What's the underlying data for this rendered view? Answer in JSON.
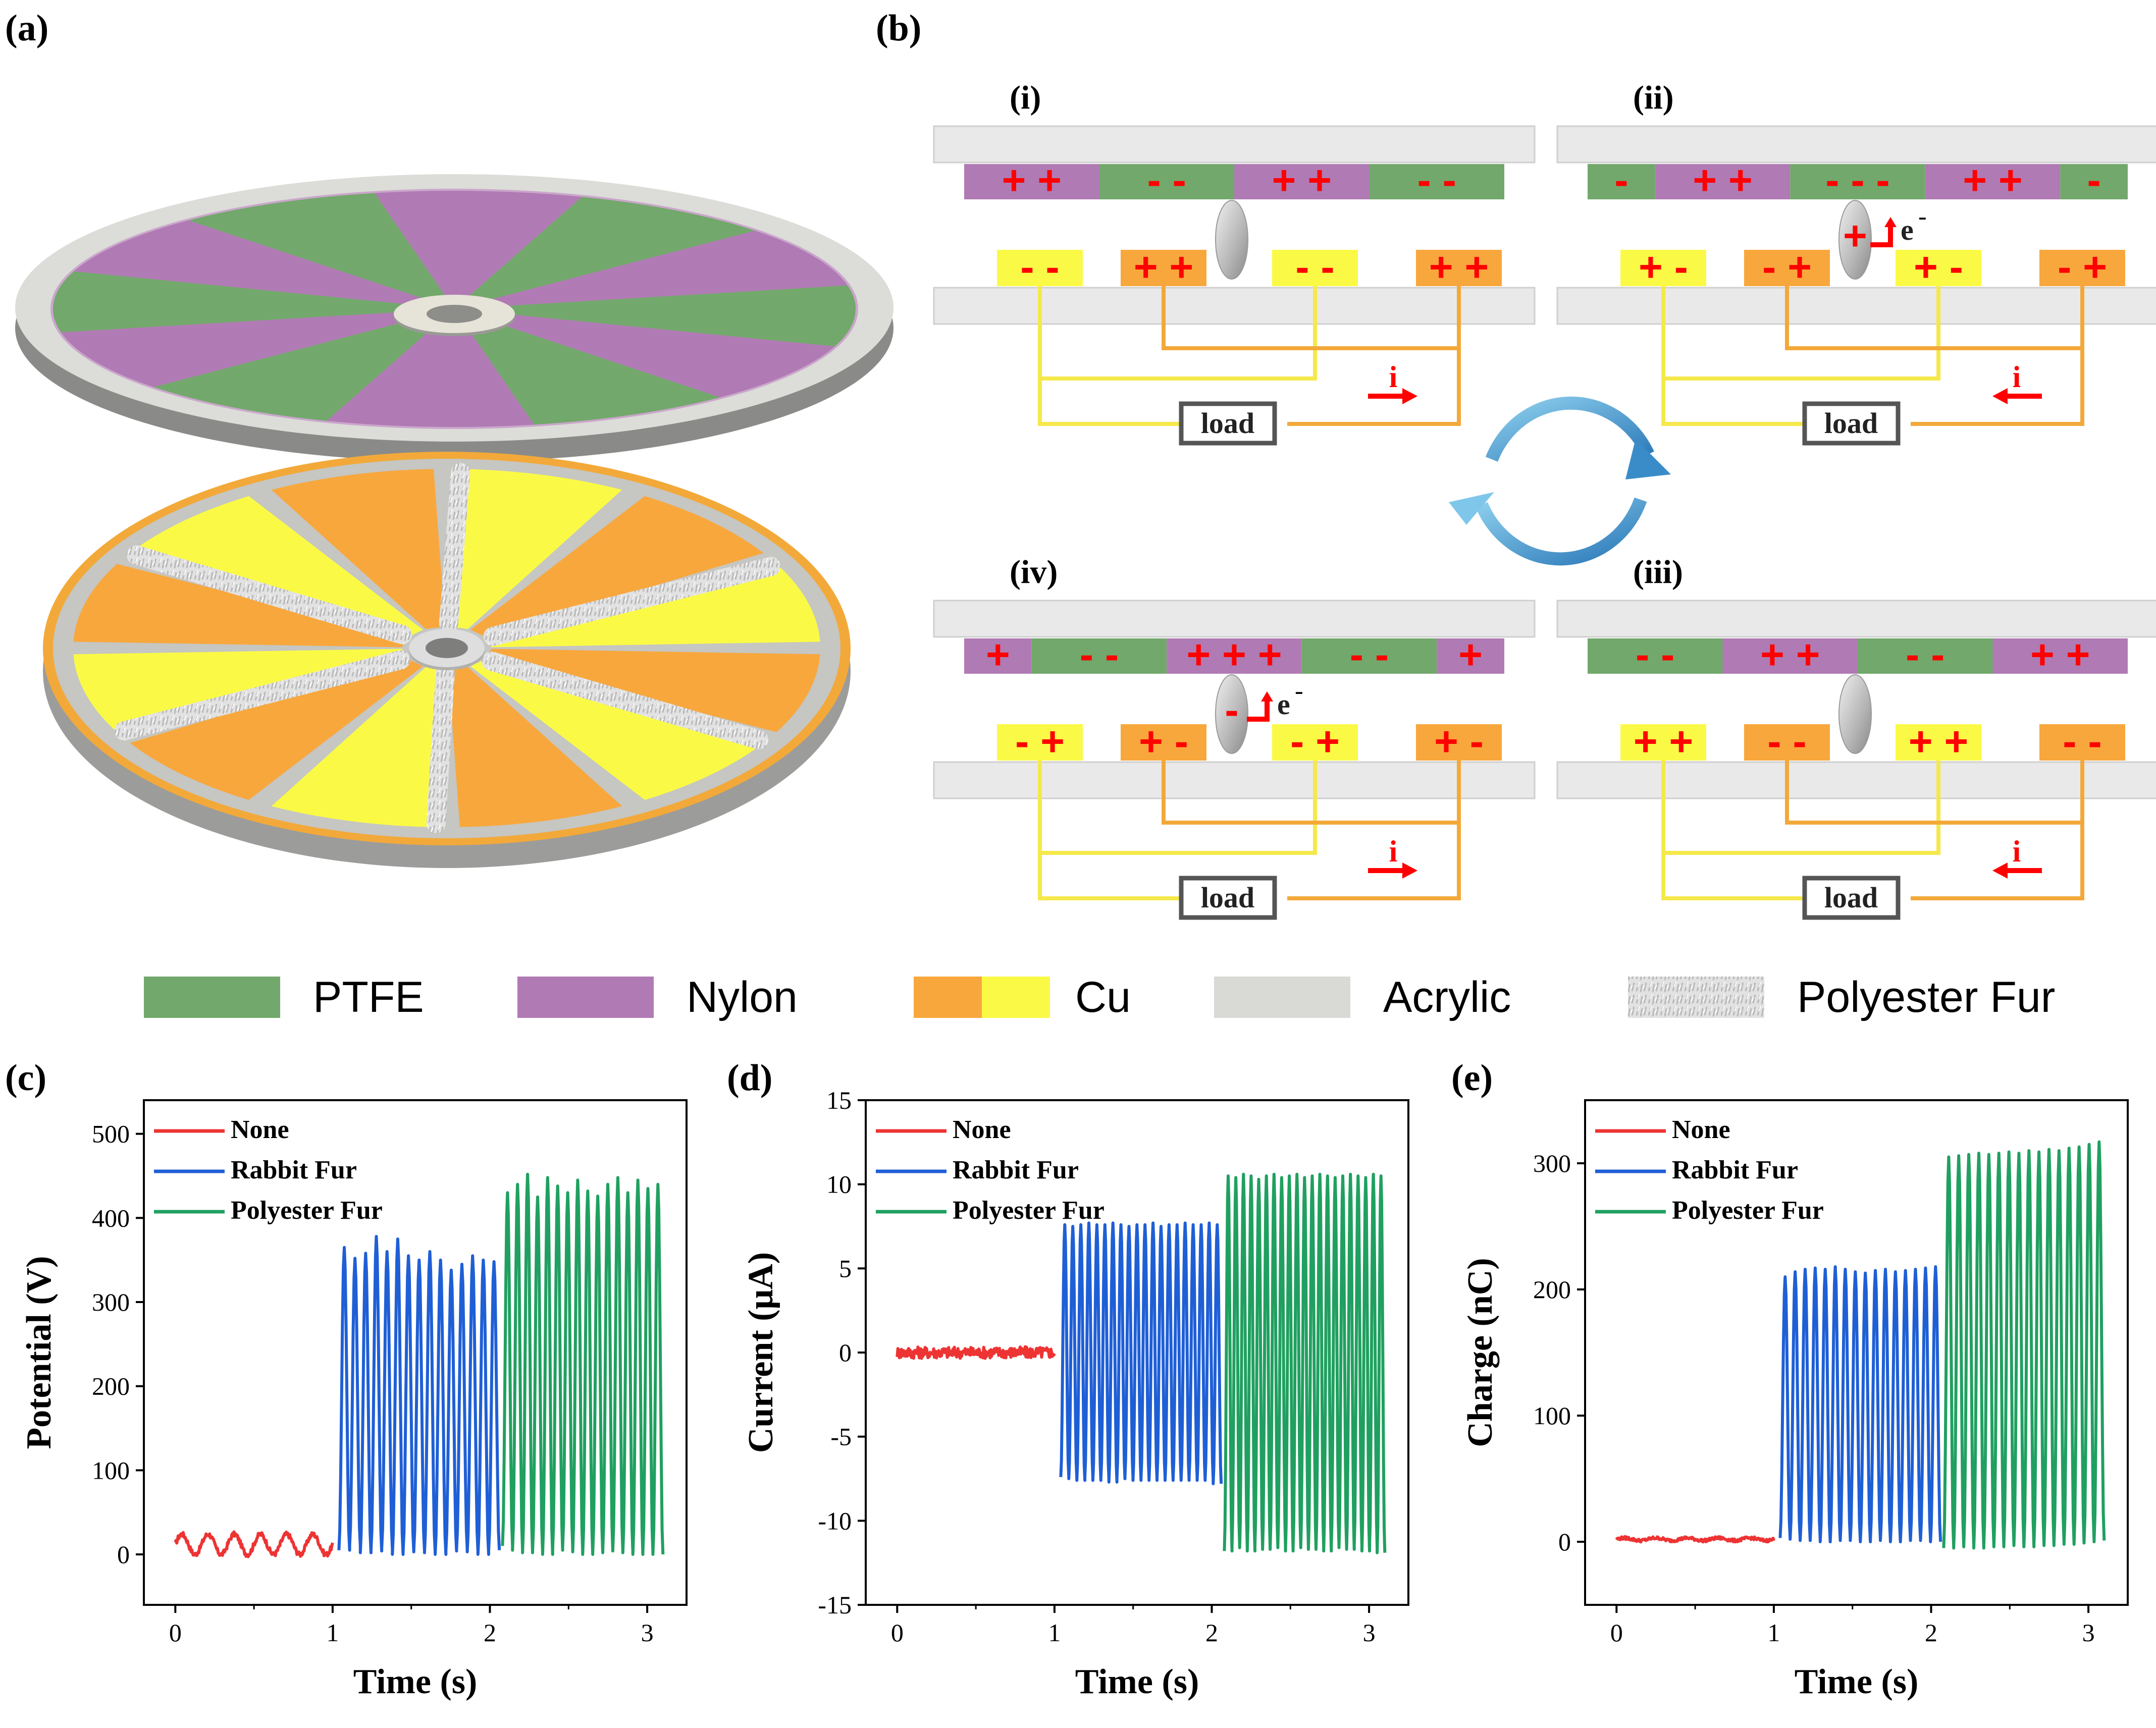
{
  "panels": {
    "a": "(a)",
    "b": "(b)",
    "c": "(c)",
    "d": "(d)",
    "e": "(e)"
  },
  "diagram": {
    "stages": [
      {
        "id": "i",
        "label": "(i)",
        "top": [
          "+ +",
          "- -",
          "+ +",
          "- -"
        ],
        "bottom": [
          "- -",
          "+ +",
          "- -",
          "+ +"
        ],
        "current": "i",
        "direction": "right",
        "particle_charge": "",
        "electron": ""
      },
      {
        "id": "ii",
        "label": "(ii)",
        "top": [
          "-",
          "+ +",
          "- - -",
          "+ +",
          "-"
        ],
        "bottom": [
          "+ -",
          "- +",
          "+ -",
          "- +"
        ],
        "current": "i",
        "direction": "left",
        "particle_charge": "+",
        "electron": "e"
      },
      {
        "id": "iii",
        "label": "(iii)",
        "top": [
          "- -",
          "+ +",
          "- -",
          "+ +"
        ],
        "bottom": [
          "+ +",
          "- -",
          "+ +",
          "- -"
        ],
        "current": "i",
        "direction": "left",
        "particle_charge": "",
        "electron": ""
      },
      {
        "id": "iv",
        "label": "(iv)",
        "top": [
          "+",
          "- -",
          "+ + +",
          "- -",
          "+"
        ],
        "bottom": [
          "- +",
          "+ -",
          "- +",
          "+ -"
        ],
        "current": "i",
        "direction": "right",
        "particle_charge": "-",
        "electron": "e"
      }
    ],
    "load_label": "load",
    "electron_superscript": "-"
  },
  "legend": [
    {
      "label": "PTFE",
      "color": "#72a86b"
    },
    {
      "label": "Nylon",
      "color": "#b07ab4"
    },
    {
      "label": "Cu",
      "color": "#f8a73d",
      "color2": "#fafa46"
    },
    {
      "label": "Acrylic",
      "color": "#d9d9d6"
    },
    {
      "label": "Polyester Fur",
      "color": "#e4e4e4"
    }
  ],
  "colors": {
    "ptfe": "#72a86b",
    "nylon": "#b07ab4",
    "cu_orange": "#f8a73d",
    "cu_yellow": "#fafa46",
    "acrylic": "#e9e9e9",
    "wire_yellow": "#f5e84a",
    "wire_orange": "#f2a93a",
    "none": "#ee3333",
    "rabbit": "#1f5fd6",
    "polyester": "#20a060",
    "sign": "#ff0000"
  },
  "chart_data": [
    {
      "type": "line",
      "title": "",
      "xlabel": "Time (s)",
      "ylabel": "Potential (V)",
      "xlim": [
        -0.2,
        3.25
      ],
      "ylim": [
        -60,
        540
      ],
      "xticks": [
        0,
        1,
        2,
        3
      ],
      "yticks": [
        0,
        100,
        200,
        300,
        400,
        500
      ],
      "legend": [
        "None",
        "Rabbit Fur",
        "Polyester Fur"
      ],
      "series": [
        {
          "name": "None",
          "x_range": [
            0.0,
            1.0
          ],
          "baseline": 12,
          "amplitude": 12,
          "cycles": 6,
          "noise": 3
        },
        {
          "name": "Rabbit Fur",
          "x_range": [
            1.04,
            2.06
          ],
          "peaks": [
            365,
            352,
            358,
            378,
            360,
            375,
            355,
            350,
            360,
            350,
            338,
            345,
            355,
            350,
            348
          ],
          "troughs": [
            5,
            10,
            2,
            4,
            6,
            0,
            3,
            5,
            2,
            0,
            4,
            6,
            3,
            0,
            5
          ]
        },
        {
          "name": "Polyester Fur",
          "x_range": [
            2.08,
            3.1
          ],
          "peaks": [
            430,
            440,
            452,
            425,
            448,
            438,
            430,
            445,
            432,
            426,
            440,
            448,
            430,
            445,
            435,
            440
          ],
          "troughs": [
            10,
            5,
            2,
            3,
            0,
            5,
            8,
            3,
            0,
            2,
            5,
            4,
            2,
            0,
            3,
            0
          ]
        }
      ]
    },
    {
      "type": "line",
      "title": "",
      "xlabel": "Time (s)",
      "ylabel": "Current (μA)",
      "xlim": [
        -0.2,
        3.25
      ],
      "ylim": [
        -15,
        15
      ],
      "xticks": [
        0,
        1,
        2,
        3
      ],
      "yticks": [
        -15,
        -10,
        -5,
        0,
        5,
        10,
        15
      ],
      "legend": [
        "None",
        "Rabbit Fur",
        "Polyester Fur"
      ],
      "series": [
        {
          "name": "None",
          "x_range": [
            0.0,
            1.0
          ],
          "baseline": 0,
          "amplitude": 0,
          "cycles": 0,
          "noise": 0.35
        },
        {
          "name": "Rabbit Fur",
          "x_range": [
            1.04,
            2.06
          ],
          "peaks": [
            7.6,
            7.5,
            7.6,
            7.7,
            7.6,
            7.6,
            7.7,
            7.6,
            7.5,
            7.6,
            7.6,
            7.7,
            7.5,
            7.6,
            7.6,
            7.7,
            7.6,
            7.6,
            7.7,
            7.6
          ],
          "troughs": [
            -7.4,
            -7.5,
            -7.6,
            -7.4,
            -7.6,
            -7.5,
            -7.7,
            -7.5,
            -7.4,
            -7.6,
            -7.5,
            -7.6,
            -7.4,
            -7.6,
            -7.5,
            -7.6,
            -7.4,
            -7.6,
            -7.5,
            -7.8
          ]
        },
        {
          "name": "Polyester Fur",
          "x_range": [
            2.08,
            3.1
          ],
          "peaks": [
            10.5,
            10.4,
            10.6,
            10.5,
            10.3,
            10.5,
            10.6,
            10.4,
            10.5,
            10.6,
            10.4,
            10.5,
            10.6,
            10.5,
            10.4,
            10.5,
            10.6,
            10.5,
            10.4,
            10.6,
            10.5
          ],
          "troughs": [
            -11.8,
            -11.5,
            -11.6,
            -11.8,
            -11.5,
            -11.7,
            -11.6,
            -11.5,
            -11.8,
            -11.6,
            -11.5,
            -11.7,
            -11.6,
            -11.8,
            -11.5,
            -11.6,
            -11.7,
            -11.5,
            -11.8,
            -11.6,
            -11.9
          ]
        }
      ]
    },
    {
      "type": "line",
      "title": "",
      "xlabel": "Time (s)",
      "ylabel": "Charge (nC)",
      "xlim": [
        -0.2,
        3.25
      ],
      "ylim": [
        -50,
        350
      ],
      "xticks": [
        0,
        1,
        2,
        3
      ],
      "yticks": [
        0,
        100,
        200,
        300
      ],
      "legend": [
        "None",
        "Rabbit Fur",
        "Polyester Fur"
      ],
      "series": [
        {
          "name": "None",
          "x_range": [
            0.0,
            1.0
          ],
          "baseline": 2,
          "amplitude": 1,
          "cycles": 5,
          "noise": 1.2
        },
        {
          "name": "Rabbit Fur",
          "x_range": [
            1.04,
            2.06
          ],
          "peaks": [
            210,
            214,
            216,
            217,
            216,
            218,
            216,
            214,
            213,
            215,
            216,
            214,
            215,
            216,
            217,
            218
          ],
          "troughs": [
            3,
            2,
            1,
            2,
            0,
            1,
            2,
            1,
            0,
            2,
            1,
            0,
            1,
            2,
            1,
            0
          ]
        },
        {
          "name": "Polyester Fur",
          "x_range": [
            2.08,
            3.1
          ],
          "peaks": [
            305,
            306,
            307,
            308,
            307,
            308,
            309,
            308,
            310,
            309,
            311,
            310,
            312,
            313,
            315,
            317
          ],
          "troughs": [
            -5,
            -4,
            -3,
            -5,
            -3,
            -4,
            -2,
            -3,
            -4,
            -2,
            -3,
            -1,
            -2,
            -1,
            0,
            1
          ]
        }
      ]
    }
  ]
}
